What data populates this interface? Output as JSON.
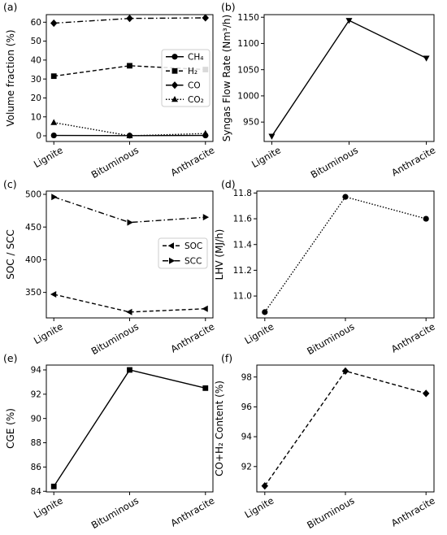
{
  "chart_data": [
    {
      "panel": "(a)",
      "type": "line",
      "categories": [
        "Lignite",
        "Bituminous",
        "Anthracite"
      ],
      "ylabel": "Volume fraction (%)",
      "ylim": [
        -3,
        64
      ],
      "yticks": [
        "0",
        "10",
        "20",
        "30",
        "40",
        "50",
        "60"
      ],
      "grid": false,
      "legend_position": "center-right",
      "series": [
        {
          "name": "CH₄",
          "values": [
            0.2,
            0.1,
            0.2
          ],
          "marker": "circle",
          "dash": "solid"
        },
        {
          "name": "H₂",
          "values": [
            31.5,
            37.0,
            35.0
          ],
          "marker": "square",
          "dash": "dashed"
        },
        {
          "name": "CO",
          "values": [
            59.5,
            62.0,
            62.3
          ],
          "marker": "diamond",
          "dash": "dashdot"
        },
        {
          "name": "CO₂",
          "values": [
            7.0,
            0.0,
            1.2
          ],
          "marker": "triangle-up",
          "dash": "dotted"
        }
      ]
    },
    {
      "panel": "(b)",
      "type": "line",
      "categories": [
        "Lignite",
        "Bituminous",
        "Anthracite"
      ],
      "ylabel": "Syngas Flow Rate (Nm³/h)",
      "ylim": [
        913,
        1155
      ],
      "yticks": [
        "950",
        "1000",
        "1050",
        "1100",
        "1150"
      ],
      "grid": false,
      "series": [
        {
          "values": [
            923,
            1144,
            1072
          ],
          "marker": "triangle-down",
          "dash": "solid"
        }
      ]
    },
    {
      "panel": "(c)",
      "type": "line",
      "categories": [
        "Lignite",
        "Bituminous",
        "Anthracite"
      ],
      "ylabel": "SOC / SCC",
      "ylim": [
        311,
        505
      ],
      "yticks": [
        "350",
        "400",
        "450",
        "500"
      ],
      "grid": false,
      "legend_position": "center-right",
      "series": [
        {
          "name": "SOC",
          "values": [
            347,
            320,
            325
          ],
          "marker": "triangle-left",
          "dash": "dashed"
        },
        {
          "name": "SCC",
          "values": [
            496,
            457,
            465
          ],
          "marker": "triangle-right",
          "dash": "dashdot"
        }
      ]
    },
    {
      "panel": "(d)",
      "type": "line",
      "categories": [
        "Lignite",
        "Bituminous",
        "Anthracite"
      ],
      "ylabel": "LHV (MJ/h)",
      "ylim": [
        10.83,
        11.815
      ],
      "yticks": [
        "11.0",
        "11.2",
        "11.4",
        "11.6",
        "11.8"
      ],
      "grid": false,
      "series": [
        {
          "values": [
            10.875,
            11.77,
            11.6
          ],
          "marker": "circle",
          "dash": "dotted"
        }
      ]
    },
    {
      "panel": "(e)",
      "type": "line",
      "categories": [
        "Lignite",
        "Bituminous",
        "Anthracite"
      ],
      "ylabel": "CGE (%)",
      "ylim": [
        83.95,
        94.4
      ],
      "yticks": [
        "84",
        "86",
        "88",
        "90",
        "92",
        "94"
      ],
      "grid": false,
      "series": [
        {
          "values": [
            84.4,
            94.0,
            92.5
          ],
          "marker": "square",
          "dash": "solid"
        }
      ]
    },
    {
      "panel": "(f)",
      "type": "line",
      "categories": [
        "Lignite",
        "Bituminous",
        "Anthracite"
      ],
      "ylabel": "CO+H₂ Content (%)",
      "ylim": [
        90.3,
        98.8
      ],
      "yticks": [
        "92",
        "94",
        "96",
        "98"
      ],
      "grid": false,
      "series": [
        {
          "values": [
            90.7,
            98.4,
            96.9
          ],
          "marker": "diamond",
          "dash": "dashed"
        }
      ]
    }
  ]
}
